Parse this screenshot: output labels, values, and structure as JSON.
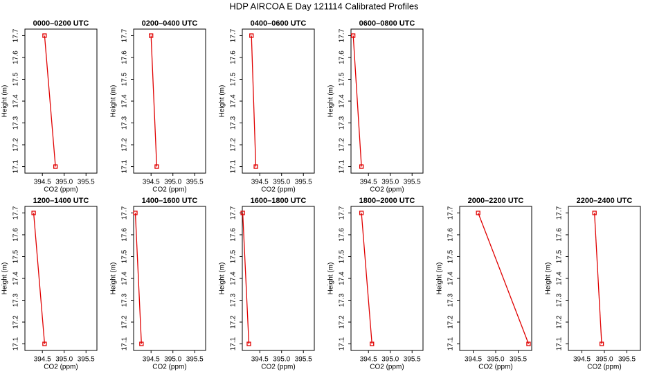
{
  "title": "HDP AIRCOA E  Day 121114  Calibrated Profiles",
  "chart_data": [
    {
      "type": "line",
      "title": "0000–0200 UTC",
      "xlabel": "CO2 (ppm)",
      "ylabel": "Height (m)",
      "color": "#e00000",
      "x": [
        394.55,
        394.8
      ],
      "values": [
        17.7,
        17.1
      ],
      "xlim": [
        394.1,
        395.75
      ],
      "ylim": [
        17.07,
        17.73
      ],
      "xticks": [
        394.5,
        {
          "value": 395,
          "label": "395.0"
        },
        395.5
      ],
      "yticks": [
        17.1,
        17.2,
        17.3,
        17.4,
        17.5,
        17.6,
        17.7
      ]
    },
    {
      "type": "line",
      "title": "0200–0400 UTC",
      "xlabel": "CO2 (ppm)",
      "ylabel": "Height (m)",
      "color": "#e00000",
      "x": [
        394.5,
        394.63
      ],
      "values": [
        17.7,
        17.1
      ],
      "xlim": [
        394.1,
        395.75
      ],
      "ylim": [
        17.07,
        17.73
      ],
      "xticks": [
        394.5,
        {
          "value": 395,
          "label": "395.0"
        },
        395.5
      ],
      "yticks": [
        17.1,
        17.2,
        17.3,
        17.4,
        17.5,
        17.6,
        17.7
      ]
    },
    {
      "type": "line",
      "title": "0400–0600 UTC",
      "xlabel": "CO2 (ppm)",
      "ylabel": "Height (m)",
      "color": "#e00000",
      "x": [
        394.31,
        394.41
      ],
      "values": [
        17.7,
        17.1
      ],
      "xlim": [
        394.1,
        395.75
      ],
      "ylim": [
        17.07,
        17.73
      ],
      "xticks": [
        394.5,
        {
          "value": 395,
          "label": "395.0"
        },
        395.5
      ],
      "yticks": [
        17.1,
        17.2,
        17.3,
        17.4,
        17.5,
        17.6,
        17.7
      ]
    },
    {
      "type": "line",
      "title": "0600–0800 UTC",
      "xlabel": "CO2 (ppm)",
      "ylabel": "Height (m)",
      "color": "#e00000",
      "x": [
        394.15,
        394.34
      ],
      "values": [
        17.7,
        17.1
      ],
      "xlim": [
        394.1,
        395.75
      ],
      "ylim": [
        17.07,
        17.73
      ],
      "xticks": [
        394.5,
        {
          "value": 395,
          "label": "395.0"
        },
        395.5
      ],
      "yticks": [
        17.1,
        17.2,
        17.3,
        17.4,
        17.5,
        17.6,
        17.7
      ]
    },
    {
      "type": "line",
      "title": "1200–1400 UTC",
      "xlabel": "CO2 (ppm)",
      "ylabel": "Height (m)",
      "color": "#e00000",
      "x": [
        394.3,
        394.55
      ],
      "values": [
        17.7,
        17.1
      ],
      "xlim": [
        394.1,
        395.75
      ],
      "ylim": [
        17.07,
        17.73
      ],
      "xticks": [
        394.5,
        {
          "value": 395,
          "label": "395.0"
        },
        395.5
      ],
      "yticks": [
        17.1,
        17.2,
        17.3,
        17.4,
        17.5,
        17.6,
        17.7
      ]
    },
    {
      "type": "line",
      "title": "1400–1600 UTC",
      "xlabel": "CO2 (ppm)",
      "ylabel": "Height (m)",
      "color": "#e00000",
      "x": [
        394.14,
        394.28
      ],
      "values": [
        17.7,
        17.1
      ],
      "xlim": [
        394.1,
        395.75
      ],
      "ylim": [
        17.07,
        17.73
      ],
      "xticks": [
        394.5,
        {
          "value": 395,
          "label": "395.0"
        },
        395.5
      ],
      "yticks": [
        17.1,
        17.2,
        17.3,
        17.4,
        17.5,
        17.6,
        17.7
      ]
    },
    {
      "type": "line",
      "title": "1600–1800 UTC",
      "xlabel": "CO2 (ppm)",
      "ylabel": "Height (m)",
      "color": "#e00000",
      "x": [
        394.11,
        394.25
      ],
      "values": [
        17.7,
        17.1
      ],
      "xlim": [
        394.1,
        395.75
      ],
      "ylim": [
        17.07,
        17.73
      ],
      "xticks": [
        394.5,
        {
          "value": 395,
          "label": "395.0"
        },
        395.5
      ],
      "yticks": [
        17.1,
        17.2,
        17.3,
        17.4,
        17.5,
        17.6,
        17.7
      ]
    },
    {
      "type": "line",
      "title": "1800–2000 UTC",
      "xlabel": "CO2 (ppm)",
      "ylabel": "Height (m)",
      "color": "#e00000",
      "x": [
        394.34,
        394.58
      ],
      "values": [
        17.7,
        17.1
      ],
      "xlim": [
        394.1,
        395.75
      ],
      "ylim": [
        17.07,
        17.73
      ],
      "xticks": [
        394.5,
        {
          "value": 395,
          "label": "395.0"
        },
        395.5
      ],
      "yticks": [
        17.1,
        17.2,
        17.3,
        17.4,
        17.5,
        17.6,
        17.7
      ]
    },
    {
      "type": "line",
      "title": "2000–2200 UTC",
      "xlabel": "CO2 (ppm)",
      "ylabel": "Height (m)",
      "color": "#e00000",
      "x": [
        394.61,
        395.73
      ],
      "values": [
        17.7,
        17.1
      ],
      "xlim": [
        394.2,
        395.8
      ],
      "ylim": [
        17.07,
        17.73
      ],
      "xticks": [
        394.5,
        {
          "value": 395,
          "label": "395.0"
        },
        395.5
      ],
      "yticks": [
        17.1,
        17.2,
        17.3,
        17.4,
        17.5,
        17.6,
        17.7
      ]
    },
    {
      "type": "line",
      "title": "2200–2400 UTC",
      "xlabel": "CO2 (ppm)",
      "ylabel": "Height (m)",
      "color": "#e00000",
      "x": [
        394.78,
        394.94
      ],
      "values": [
        17.7,
        17.1
      ],
      "xlim": [
        394.2,
        395.8
      ],
      "ylim": [
        17.07,
        17.73
      ],
      "xticks": [
        394.5,
        {
          "value": 395,
          "label": "395.0"
        },
        395.5
      ],
      "yticks": [
        17.1,
        17.2,
        17.3,
        17.4,
        17.5,
        17.6,
        17.7
      ]
    }
  ]
}
